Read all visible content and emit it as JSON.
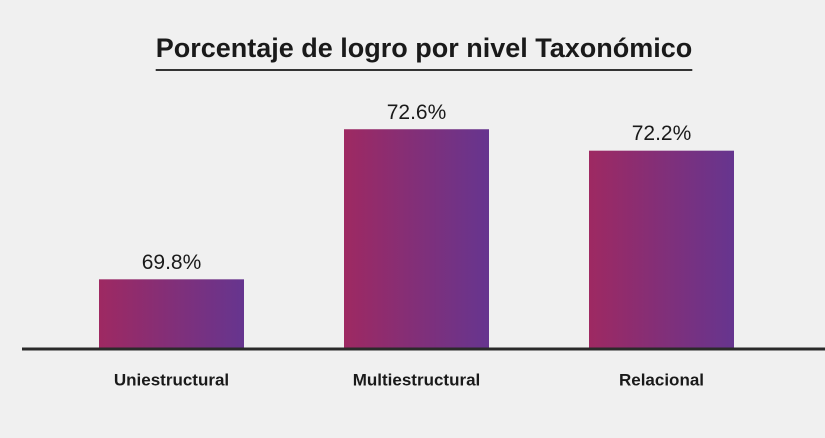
{
  "chart_data": {
    "type": "bar",
    "title": "Porcentaje de logro por nivel Taxonómico",
    "categories": [
      "Uniestructural",
      "Multiestructural",
      "Relacional"
    ],
    "values": [
      69.8,
      72.6,
      72.2
    ],
    "value_labels": [
      "69.8%",
      "72.6%",
      "72.2%"
    ],
    "color": [
      "#9e2962",
      "#66358f"
    ],
    "ylim": [
      68.5,
      73
    ]
  }
}
